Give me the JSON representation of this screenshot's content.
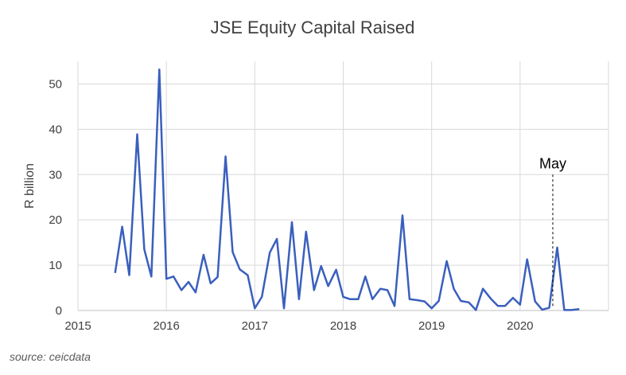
{
  "chart_data": {
    "type": "line",
    "title": "JSE Equity Capital Raised",
    "xlabel": "",
    "ylabel": "R billion",
    "xlim": [
      2015,
      2021
    ],
    "ylim": [
      0,
      55
    ],
    "x_ticks": [
      2015,
      2016,
      2017,
      2018,
      2019,
      2020
    ],
    "y_ticks": [
      0,
      10,
      20,
      30,
      40,
      50
    ],
    "grid": true,
    "legend": "none",
    "line_color": "#3a5fbd",
    "series": [
      {
        "x": [
          2015.42,
          2015.5,
          2015.58,
          2015.67,
          2015.75,
          2015.83,
          2015.92,
          2016.0,
          2016.08,
          2016.17,
          2016.25,
          2016.33,
          2016.42,
          2016.5,
          2016.58,
          2016.67,
          2016.75,
          2016.83,
          2016.92,
          2017.0,
          2017.08,
          2017.17,
          2017.25,
          2017.33,
          2017.42,
          2017.5,
          2017.58,
          2017.67,
          2017.75,
          2017.83,
          2017.92,
          2018.0,
          2018.08,
          2018.17,
          2018.25,
          2018.33,
          2018.42,
          2018.5,
          2018.58,
          2018.67,
          2018.75,
          2018.83,
          2018.92,
          2019.0,
          2019.08,
          2019.17,
          2019.25,
          2019.33,
          2019.42,
          2019.5,
          2019.58,
          2019.67,
          2019.75,
          2019.83,
          2019.92,
          2020.0,
          2020.08,
          2020.17,
          2020.25,
          2020.33,
          2020.42,
          2020.5,
          2020.58,
          2020.67
        ],
        "values": [
          8.3,
          18.5,
          7.8,
          38.9,
          13.5,
          7.5,
          53.2,
          7.0,
          7.5,
          4.5,
          6.3,
          4.0,
          12.3,
          6.0,
          7.4,
          34.0,
          12.9,
          9.1,
          7.8,
          0.5,
          3.0,
          12.8,
          15.8,
          0.5,
          19.5,
          2.5,
          17.4,
          4.5,
          9.8,
          5.4,
          9.0,
          3.0,
          2.5,
          2.5,
          7.5,
          2.5,
          4.8,
          4.5,
          1.0,
          21.0,
          2.5,
          2.3,
          2.0,
          0.5,
          2.1,
          10.9,
          4.8,
          2.1,
          1.8,
          0.1,
          4.8,
          2.6,
          1.0,
          1.0,
          2.8,
          1.3,
          11.3,
          2.0,
          0.2,
          0.6,
          13.9,
          0.1,
          0.1,
          0.3
        ]
      }
    ],
    "annotations": [
      {
        "text": "May",
        "x": 2020.37,
        "y_from": 0.5,
        "y_to": 30,
        "style": "dashed"
      }
    ]
  },
  "source_note": "source: ceicdata"
}
